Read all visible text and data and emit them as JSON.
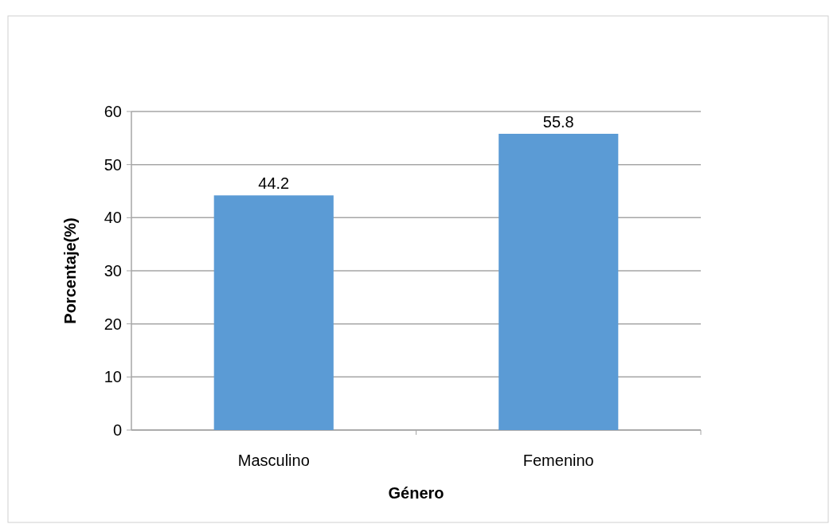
{
  "chart_data": {
    "type": "bar",
    "xlabel": "Género",
    "ylabel": "Porcentaje(%)",
    "categories": [
      "Masculino",
      "Femenino"
    ],
    "values": [
      44.2,
      55.8
    ],
    "color": "#5b9bd5",
    "ylim": [
      0,
      60
    ],
    "yticks": [
      0,
      10,
      20,
      30,
      40,
      50,
      60
    ],
    "grid": "y",
    "data_labels": true
  }
}
